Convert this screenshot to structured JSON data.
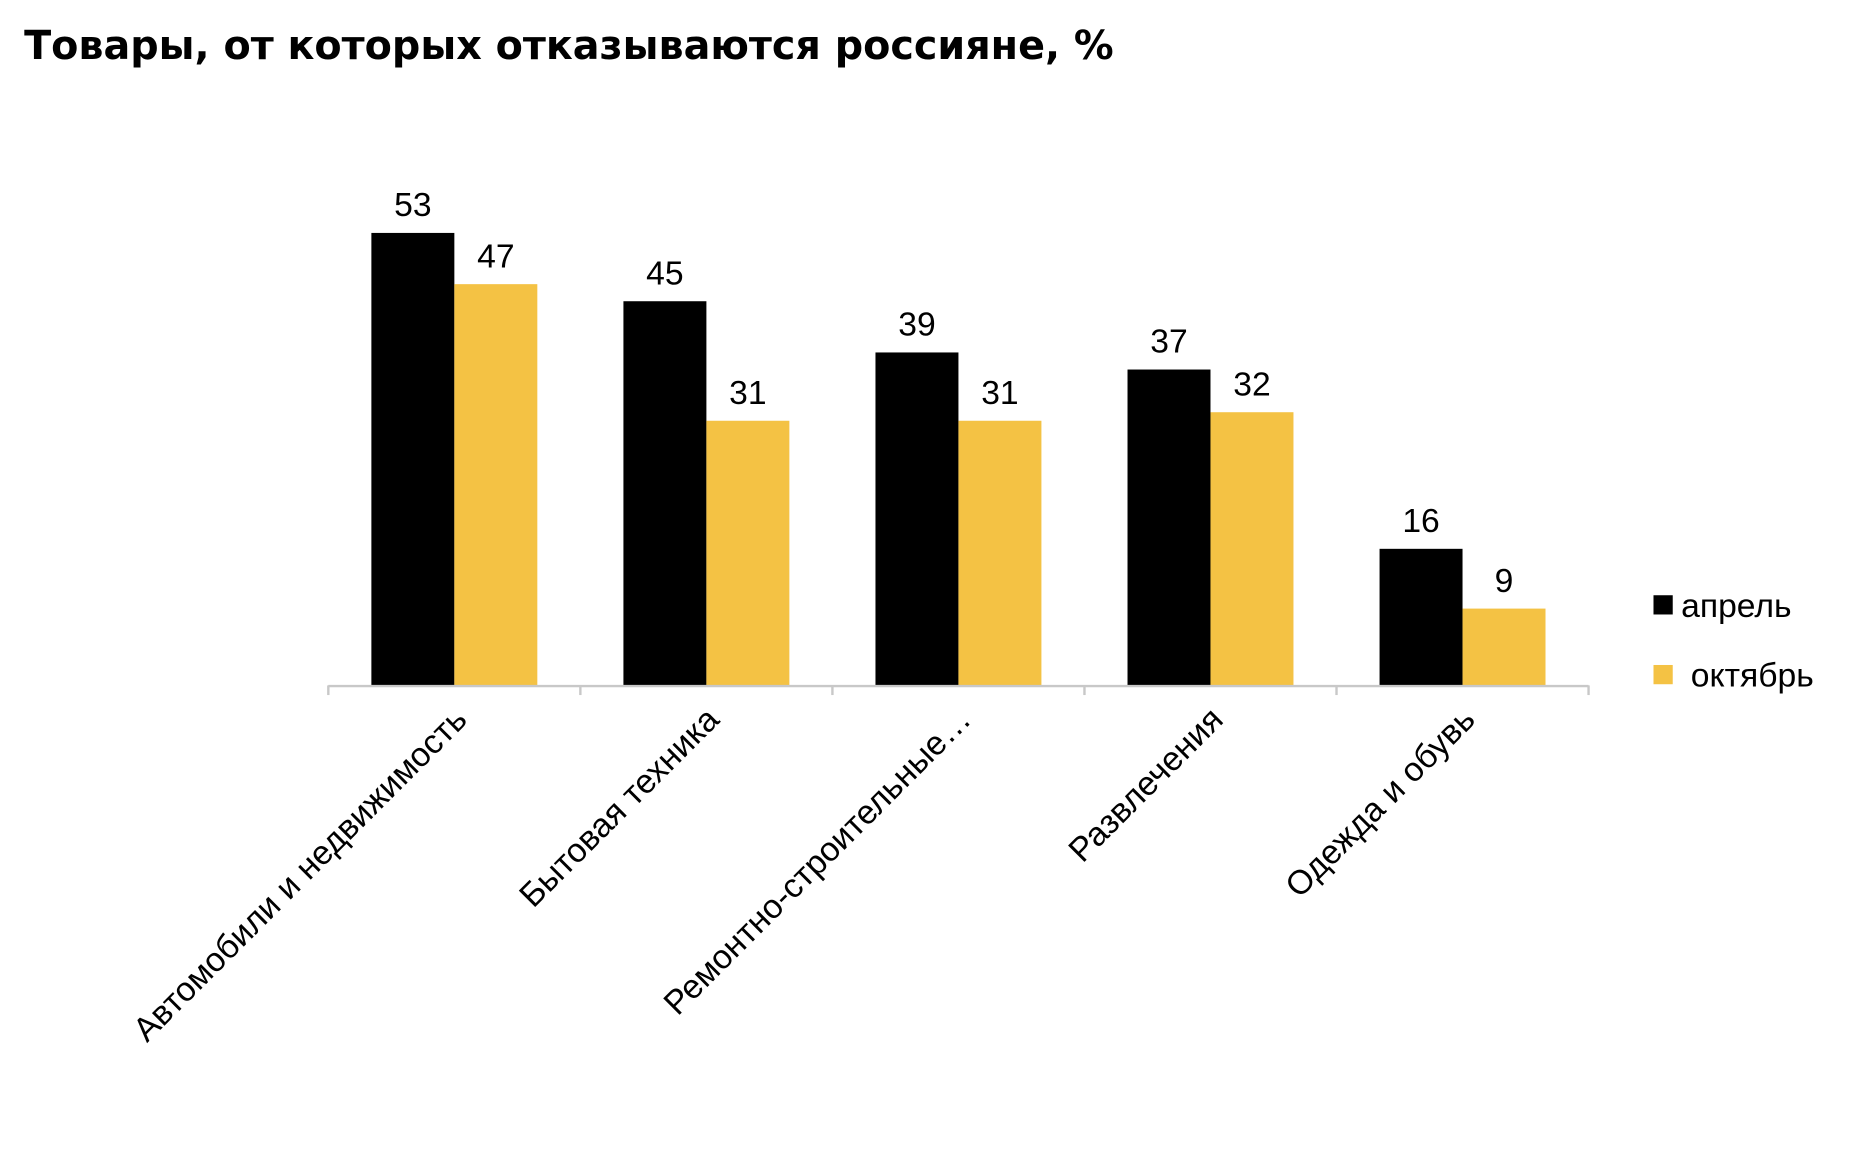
{
  "chart_data": {
    "type": "bar",
    "title": "Товары, от которых отказываются россияне, %",
    "xlabel": "",
    "ylabel": "",
    "ylim": [
      0,
      55
    ],
    "grid": false,
    "legend_position": "right",
    "categories": [
      "Автомобили и недвижимость",
      "Бытовая техника",
      "Ремонтно-строительные…",
      "Развлечения",
      "Одежда и обувь"
    ],
    "series": [
      {
        "name": "апрель",
        "color": "#000000",
        "values": [
          53,
          45,
          39,
          37,
          16
        ]
      },
      {
        "name": "октябрь",
        "color": "#F4C244",
        "values": [
          47,
          31,
          31,
          32,
          9
        ]
      }
    ]
  }
}
